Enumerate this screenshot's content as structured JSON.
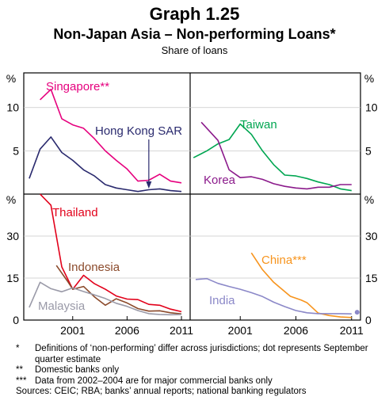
{
  "title": "Graph 1.25",
  "subtitle": "Non-Japan Asia – Non-performing Loans*",
  "units": "Share of loans",
  "chart_data": {
    "type": "line",
    "x_ticks": [
      "2001",
      "2006",
      "2011"
    ],
    "xlim": [
      1996.5,
      2011.8
    ],
    "unit_label": "%",
    "panels": [
      {
        "position": "top-left",
        "ylim": [
          0,
          14
        ],
        "yticks": [
          5,
          10
        ],
        "series": [
          {
            "name": "Singapore**",
            "color": "#e6007e",
            "x": [
              1998,
              1999,
              2000,
              2001,
              2002,
              2003,
              2004,
              2005,
              2006,
              2007,
              2008,
              2009,
              2010,
              2011
            ],
            "y": [
              10.9,
              12.1,
              8.7,
              8.0,
              7.6,
              6.4,
              5.0,
              3.9,
              2.9,
              1.5,
              1.6,
              2.3,
              1.5,
              1.3
            ]
          },
          {
            "name": "Hong Kong SAR",
            "color": "#2a2a6e",
            "x": [
              1997,
              1998,
              1999,
              2000,
              2001,
              2002,
              2003,
              2004,
              2005,
              2006,
              2007,
              2008,
              2009,
              2010,
              2011
            ],
            "y": [
              1.8,
              5.2,
              6.6,
              4.8,
              3.9,
              2.8,
              2.1,
              1.1,
              0.7,
              0.5,
              0.3,
              0.5,
              0.6,
              0.4,
              0.3
            ]
          }
        ]
      },
      {
        "position": "top-right",
        "ylim": [
          0,
          14
        ],
        "yticks": [
          5,
          10
        ],
        "series": [
          {
            "name": "Taiwan",
            "color": "#00a651",
            "x": [
              1996.8,
              1998,
              1999,
              2000,
              2001,
              2002,
              2003,
              2004,
              2005,
              2006,
              2007,
              2008,
              2009,
              2010,
              2011
            ],
            "y": [
              4.2,
              5.0,
              5.8,
              6.3,
              8.1,
              6.9,
              5.0,
              3.4,
              2.2,
              2.1,
              1.8,
              1.4,
              1.1,
              0.6,
              0.4
            ]
          },
          {
            "name": "Korea",
            "color": "#8b1a8b",
            "x": [
              1997.5,
              1999,
              2000,
              2001,
              2002,
              2003,
              2004,
              2005,
              2006,
              2007,
              2008,
              2009,
              2010,
              2011
            ],
            "y": [
              8.3,
              6.2,
              2.8,
              1.9,
              2.0,
              1.7,
              1.2,
              0.9,
              0.7,
              0.6,
              0.8,
              0.8,
              1.1,
              1.1
            ]
          }
        ]
      },
      {
        "position": "bottom-left",
        "ylim": [
          0,
          45
        ],
        "yticks": [
          0,
          15,
          30
        ],
        "series": [
          {
            "name": "Thailand",
            "color": "#e2001a",
            "x": [
              1998,
              1999,
              2000,
              2001,
              2002,
              2003,
              2004,
              2005,
              2006,
              2007,
              2008,
              2009,
              2010,
              2011
            ],
            "y": [
              45,
              41,
              19,
              11,
              16,
              13,
              11,
              8.6,
              7.5,
              7.3,
              5.6,
              5.3,
              3.9,
              3.0
            ]
          },
          {
            "name": "Indonesia",
            "color": "#8b4a2b",
            "x": [
              1999.5,
              2000.5,
              2001,
              2002,
              2003,
              2004,
              2005,
              2006,
              2007,
              2008,
              2009,
              2010,
              2011
            ],
            "y": [
              19.5,
              14,
              11,
              12,
              8.3,
              5.3,
              7.6,
              6.1,
              4.1,
              3.2,
              3.3,
              2.6,
              2.2
            ]
          },
          {
            "name": "Malaysia",
            "color": "#9a9aa8",
            "x": [
              1997,
              1998,
              1999,
              2000,
              2001,
              2002,
              2003,
              2004,
              2005,
              2006,
              2007,
              2008,
              2009,
              2010,
              2011
            ],
            "y": [
              4.5,
              13.5,
              11.2,
              10.1,
              11.5,
              10.2,
              9.0,
              7.7,
              6.0,
              4.9,
              3.4,
              2.3,
              2.0,
              1.9,
              2.0
            ]
          }
        ]
      },
      {
        "position": "bottom-right",
        "ylim": [
          0,
          45
        ],
        "yticks": [
          0,
          15,
          30
        ],
        "series": [
          {
            "name": "China***",
            "color": "#f7941d",
            "x": [
              2002,
              2003,
              2004,
              2005.5,
              2006.5,
              2007,
              2008,
              2009,
              2010,
              2011
            ],
            "y": [
              24,
              18,
              13.5,
              8.5,
              7.1,
              6.2,
              2.5,
              1.6,
              1.1,
              0.9
            ]
          },
          {
            "name": "India",
            "color": "#8b88c8",
            "x": [
              1997,
              1998,
              1999,
              2000,
              2001,
              2002,
              2003,
              2004,
              2005,
              2006,
              2007,
              2008,
              2009,
              2010,
              2011
            ],
            "y": [
              14.5,
              14.8,
              13.1,
              12.0,
              11.0,
              9.8,
              8.4,
              6.4,
              4.8,
              3.4,
              2.6,
              2.3,
              2.3,
              2.3,
              2.2
            ]
          }
        ],
        "dot": {
          "x": 2011.5,
          "y": 2.8,
          "color": "#8b88c8"
        }
      }
    ],
    "annotations": [
      {
        "panel": "top-left",
        "text": "arrow pointing from Hong Kong SAR label down to its line at 2008"
      }
    ]
  },
  "notes": [
    {
      "marker": "*",
      "text": "Definitions of ‘non-performing’ differ across jurisdictions; dot represents September quarter estimate"
    },
    {
      "marker": "**",
      "text": "Domestic banks only"
    },
    {
      "marker": "***",
      "text": "Data from 2002–2004 are for major commercial banks only"
    }
  ],
  "sources": "Sources: CEIC; RBA; banks’ annual reports; national banking regulators"
}
